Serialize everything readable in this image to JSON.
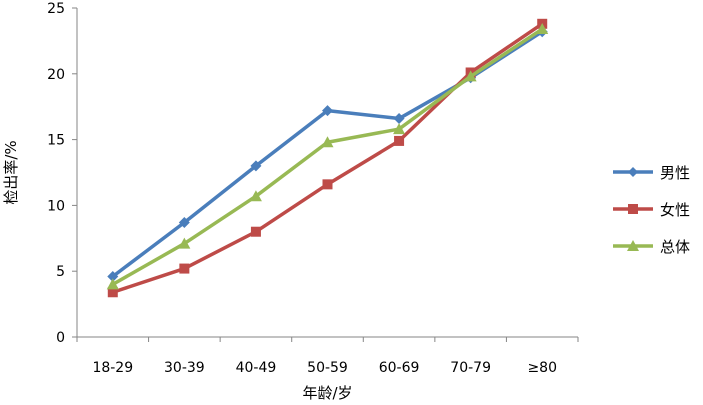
{
  "chart_data": {
    "type": "line",
    "categories": [
      "18-29",
      "30-39",
      "40-49",
      "50-59",
      "60-69",
      "70-79",
      "≥80"
    ],
    "xlabel": "年龄/岁",
    "ylabel": "检出率/%",
    "ylim": [
      0,
      25
    ],
    "yticks": [
      0,
      5,
      10,
      15,
      20,
      25
    ],
    "grid": false,
    "legend_position": "right",
    "series": [
      {
        "name": "男性",
        "color": "#4a7ebb",
        "marker": "diamond",
        "values": [
          4.6,
          8.7,
          13.0,
          17.2,
          16.6,
          19.7,
          23.2
        ]
      },
      {
        "name": "女性",
        "color": "#be4b48",
        "marker": "square",
        "values": [
          3.4,
          5.2,
          8.0,
          11.6,
          14.9,
          20.1,
          23.8
        ]
      },
      {
        "name": "总体",
        "color": "#98b954",
        "marker": "triangle",
        "values": [
          4.0,
          7.1,
          10.7,
          14.8,
          15.8,
          19.8,
          23.4
        ]
      }
    ]
  }
}
